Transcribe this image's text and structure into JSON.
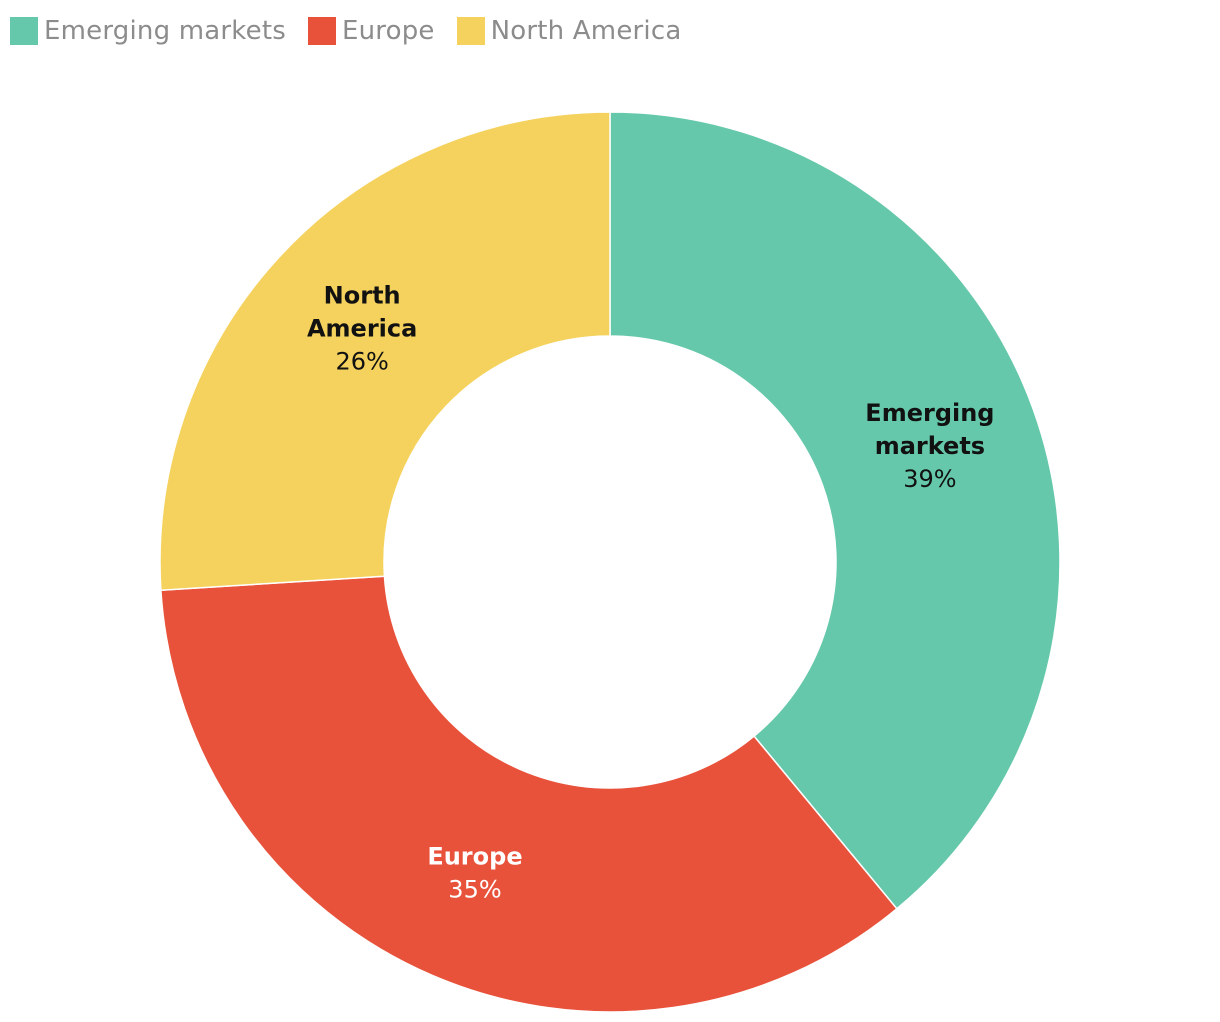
{
  "chart_data": {
    "type": "pie",
    "variant": "donut",
    "title": "",
    "legend_position": "top-left",
    "categories": [
      "Emerging markets",
      "Europe",
      "North America"
    ],
    "values": [
      39,
      35,
      26
    ],
    "value_labels": [
      "39%",
      "35%",
      "26%"
    ],
    "label_lines": [
      [
        "Emerging",
        "markets"
      ],
      [
        "Europe"
      ],
      [
        "North",
        "America"
      ]
    ],
    "colors": [
      "#66c8aa",
      "#e8523b",
      "#f5d25e"
    ],
    "label_text_colors": [
      "#111111",
      "#ffffff",
      "#111111"
    ]
  }
}
